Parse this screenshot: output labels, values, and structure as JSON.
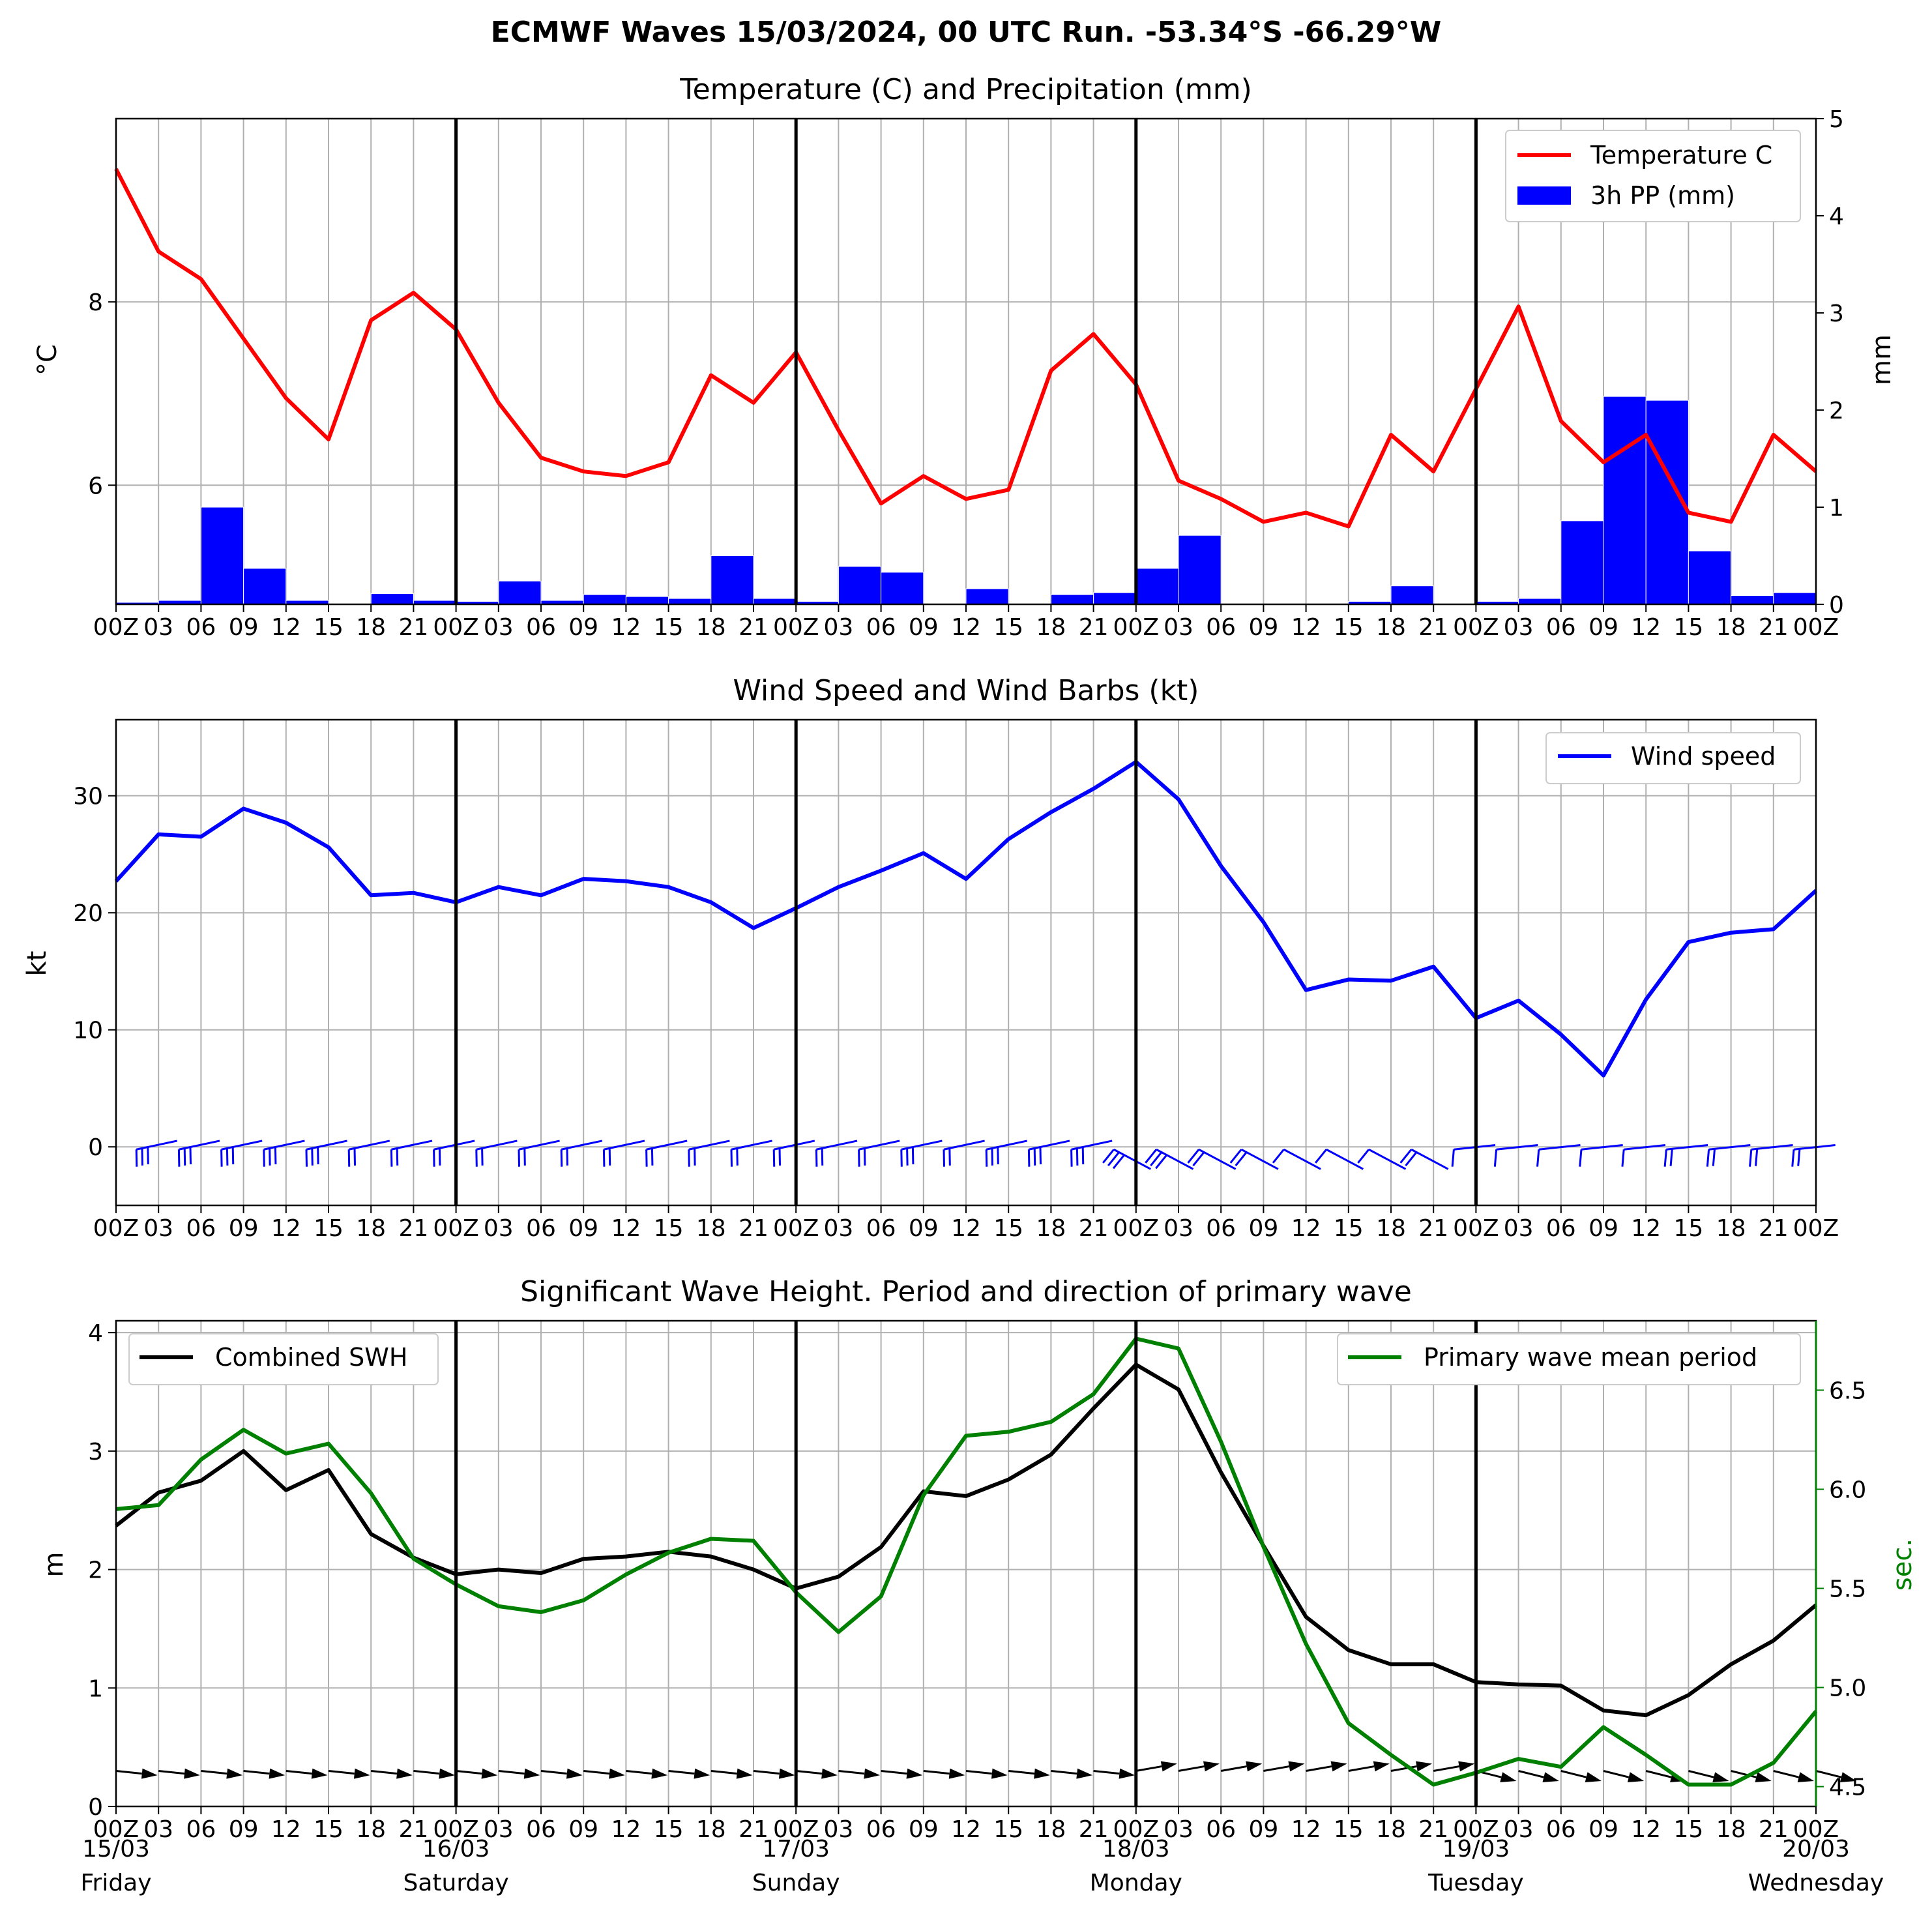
{
  "suptitle": "ECMWF Waves 15/03/2024, 00 UTC Run. -53.34°S -66.29°W",
  "time_ticks": [
    "00Z",
    "03",
    "06",
    "09",
    "12",
    "15",
    "18",
    "21",
    "00Z",
    "03",
    "06",
    "09",
    "12",
    "15",
    "18",
    "21",
    "00Z",
    "03",
    "06",
    "09",
    "12",
    "15",
    "18",
    "21",
    "00Z",
    "03",
    "06",
    "09",
    "12",
    "15",
    "18",
    "21",
    "00Z",
    "03",
    "06",
    "09",
    "12",
    "15",
    "18",
    "21",
    "00Z"
  ],
  "day_labels": [
    {
      "date": "15/03",
      "weekday": "Friday"
    },
    {
      "date": "16/03",
      "weekday": "Saturday"
    },
    {
      "date": "17/03",
      "weekday": "Sunday"
    },
    {
      "date": "18/03",
      "weekday": "Monday"
    },
    {
      "date": "19/03",
      "weekday": "Tuesday"
    },
    {
      "date": "20/03",
      "weekday": "Wednesday"
    }
  ],
  "colors": {
    "temperature": "#ff0000",
    "precip": "#0000ff",
    "wind": "#0000ff",
    "swh": "#000000",
    "period": "#008000",
    "grid": "#b0b0b0"
  },
  "chart_data": [
    {
      "type": "line",
      "title": "Temperature (C) and Precipitation (mm)",
      "ylabel": "$^\\circ$C",
      "y2label": "mm",
      "ylim": [
        4.7,
        10.0
      ],
      "yticks": [
        "6",
        "8"
      ],
      "y2lim": [
        0,
        5
      ],
      "y2ticks": [
        "0",
        "1",
        "2",
        "3",
        "4",
        "5"
      ],
      "legend_position": "top-right",
      "x_hours": [
        0,
        3,
        6,
        9,
        12,
        15,
        18,
        21,
        24,
        27,
        30,
        33,
        36,
        39,
        42,
        45,
        48,
        51,
        54,
        57,
        60,
        63,
        66,
        69,
        72,
        75,
        78,
        81,
        84,
        87,
        90,
        93,
        96,
        99,
        102,
        105,
        108,
        111,
        114,
        117,
        120
      ],
      "series": [
        {
          "name": "Temperature C",
          "kind": "line",
          "axis": "left",
          "values": [
            9.45,
            8.55,
            8.25,
            7.6,
            6.95,
            6.5,
            7.8,
            8.1,
            7.7,
            6.9,
            6.3,
            6.15,
            6.1,
            6.25,
            7.2,
            6.9,
            7.45,
            6.6,
            5.8,
            6.1,
            5.85,
            5.95,
            7.25,
            7.65,
            7.1,
            6.05,
            5.85,
            5.6,
            5.7,
            5.55,
            6.55,
            6.15,
            7.05,
            7.95,
            6.7,
            6.25,
            6.55,
            5.7,
            5.6,
            6.55,
            6.15
          ]
        },
        {
          "name": "3h PP (mm)",
          "kind": "bar",
          "axis": "right",
          "values": [
            0.02,
            0.04,
            1.0,
            0.37,
            0.04,
            0,
            0.11,
            0.04,
            0.03,
            0.24,
            0.04,
            0.1,
            0.08,
            0.06,
            0.5,
            0.06,
            0.03,
            0.39,
            0.33,
            0,
            0.16,
            0,
            0.1,
            0.12,
            0.37,
            0.71,
            0,
            0,
            0,
            0.03,
            0.19,
            0,
            0.03,
            0.06,
            0.86,
            2.14,
            2.1,
            0.55,
            0.09,
            0.12
          ]
        }
      ]
    },
    {
      "type": "line",
      "title": "Wind Speed and Wind Barbs (kt)",
      "ylabel": "kt",
      "ylim": [
        -5,
        36.5
      ],
      "yticks": [
        "0",
        "10",
        "20",
        "30"
      ],
      "legend_position": "top-right",
      "x_hours": [
        0,
        3,
        6,
        9,
        12,
        15,
        18,
        21,
        24,
        27,
        30,
        33,
        36,
        39,
        42,
        45,
        48,
        51,
        54,
        57,
        60,
        63,
        66,
        69,
        72,
        75,
        78,
        81,
        84,
        87,
        90,
        93,
        96,
        99,
        102,
        105,
        108,
        111,
        114,
        117,
        120
      ],
      "series": [
        {
          "name": "Wind speed",
          "values": [
            22.7,
            26.7,
            26.5,
            28.9,
            27.7,
            25.6,
            21.5,
            21.7,
            20.9,
            22.2,
            21.5,
            22.9,
            22.7,
            22.2,
            20.9,
            18.7,
            20.4,
            22.2,
            23.6,
            25.1,
            22.9,
            26.3,
            28.6,
            30.6,
            32.9,
            29.7,
            24.0,
            19.2,
            13.4,
            14.3,
            14.2,
            15.4,
            11.0,
            12.5,
            9.6,
            6.1,
            12.6,
            17.5,
            18.3,
            18.6,
            21.9
          ]
        }
      ]
    },
    {
      "type": "line",
      "title": "Significant Wave Height. Period and direction of primary wave",
      "ylabel": "m",
      "y2label": "sec.",
      "ylim": [
        0,
        4.1
      ],
      "yticks": [
        "0",
        "1",
        "2",
        "3",
        "4"
      ],
      "y2lim": [
        4.4,
        6.85
      ],
      "y2ticks": [
        "4.5",
        "5.0",
        "5.5",
        "6.0",
        "6.5"
      ],
      "legends": [
        {
          "name": "Combined SWH",
          "position": "top-left"
        },
        {
          "name": "Primary wave mean period",
          "position": "top-right"
        }
      ],
      "x_hours": [
        0,
        3,
        6,
        9,
        12,
        15,
        18,
        21,
        24,
        27,
        30,
        33,
        36,
        39,
        42,
        45,
        48,
        51,
        54,
        57,
        60,
        63,
        66,
        69,
        72,
        75,
        78,
        81,
        84,
        87,
        90,
        93,
        96,
        99,
        102,
        105,
        108,
        111,
        114,
        117,
        120
      ],
      "series": [
        {
          "name": "Combined SWH",
          "axis": "left",
          "values": [
            2.37,
            2.65,
            2.75,
            3.0,
            2.67,
            2.84,
            2.3,
            2.1,
            1.96,
            2.0,
            1.97,
            2.09,
            2.11,
            2.15,
            2.11,
            2.0,
            1.84,
            1.94,
            2.19,
            2.66,
            2.62,
            2.76,
            2.97,
            3.36,
            3.73,
            3.52,
            2.82,
            2.2,
            1.6,
            1.32,
            1.2,
            1.2,
            1.05,
            1.03,
            1.02,
            0.81,
            0.77,
            0.94,
            1.2,
            1.4,
            1.7
          ]
        },
        {
          "name": "Primary wave mean period",
          "axis": "right",
          "values": [
            5.9,
            5.92,
            6.15,
            6.3,
            6.18,
            6.23,
            5.98,
            5.65,
            5.52,
            5.41,
            5.38,
            5.44,
            5.57,
            5.68,
            5.75,
            5.74,
            5.48,
            5.28,
            5.46,
            5.97,
            6.27,
            6.29,
            6.34,
            6.48,
            6.76,
            6.71,
            6.24,
            5.71,
            5.22,
            4.82,
            4.66,
            4.51,
            4.57,
            4.64,
            4.6,
            4.8,
            4.66,
            4.51,
            4.51,
            4.62,
            4.88
          ]
        }
      ]
    }
  ]
}
